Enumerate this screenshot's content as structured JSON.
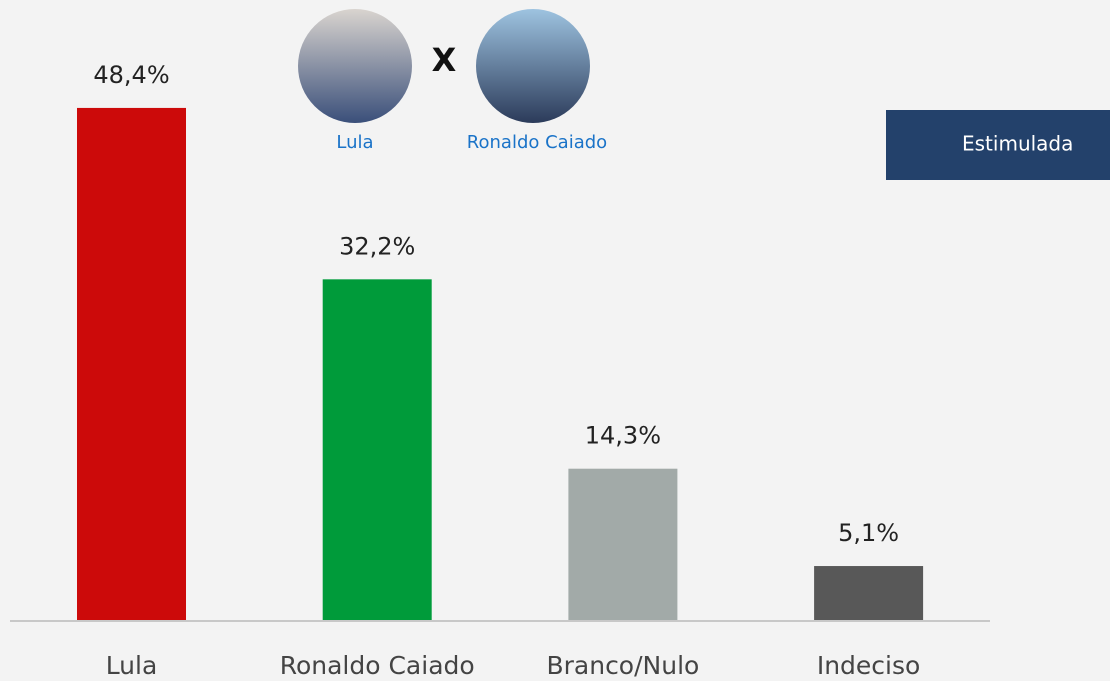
{
  "chart_data": {
    "type": "bar",
    "categories": [
      "Lula",
      "Ronaldo Caiado",
      "Branco/Nulo",
      "Indeciso"
    ],
    "values": [
      48.4,
      32.2,
      14.3,
      5.1
    ],
    "value_labels": [
      "48,4%",
      "32,2%",
      "14,3%",
      "5,1%"
    ],
    "colors": [
      "#cc0a0a",
      "#009b3a",
      "#a2aaa8",
      "#585858"
    ]
  },
  "header": {
    "versus": "X",
    "candidates": [
      "Lula",
      "Ronaldo Caiado"
    ]
  },
  "button": "Estimulada"
}
